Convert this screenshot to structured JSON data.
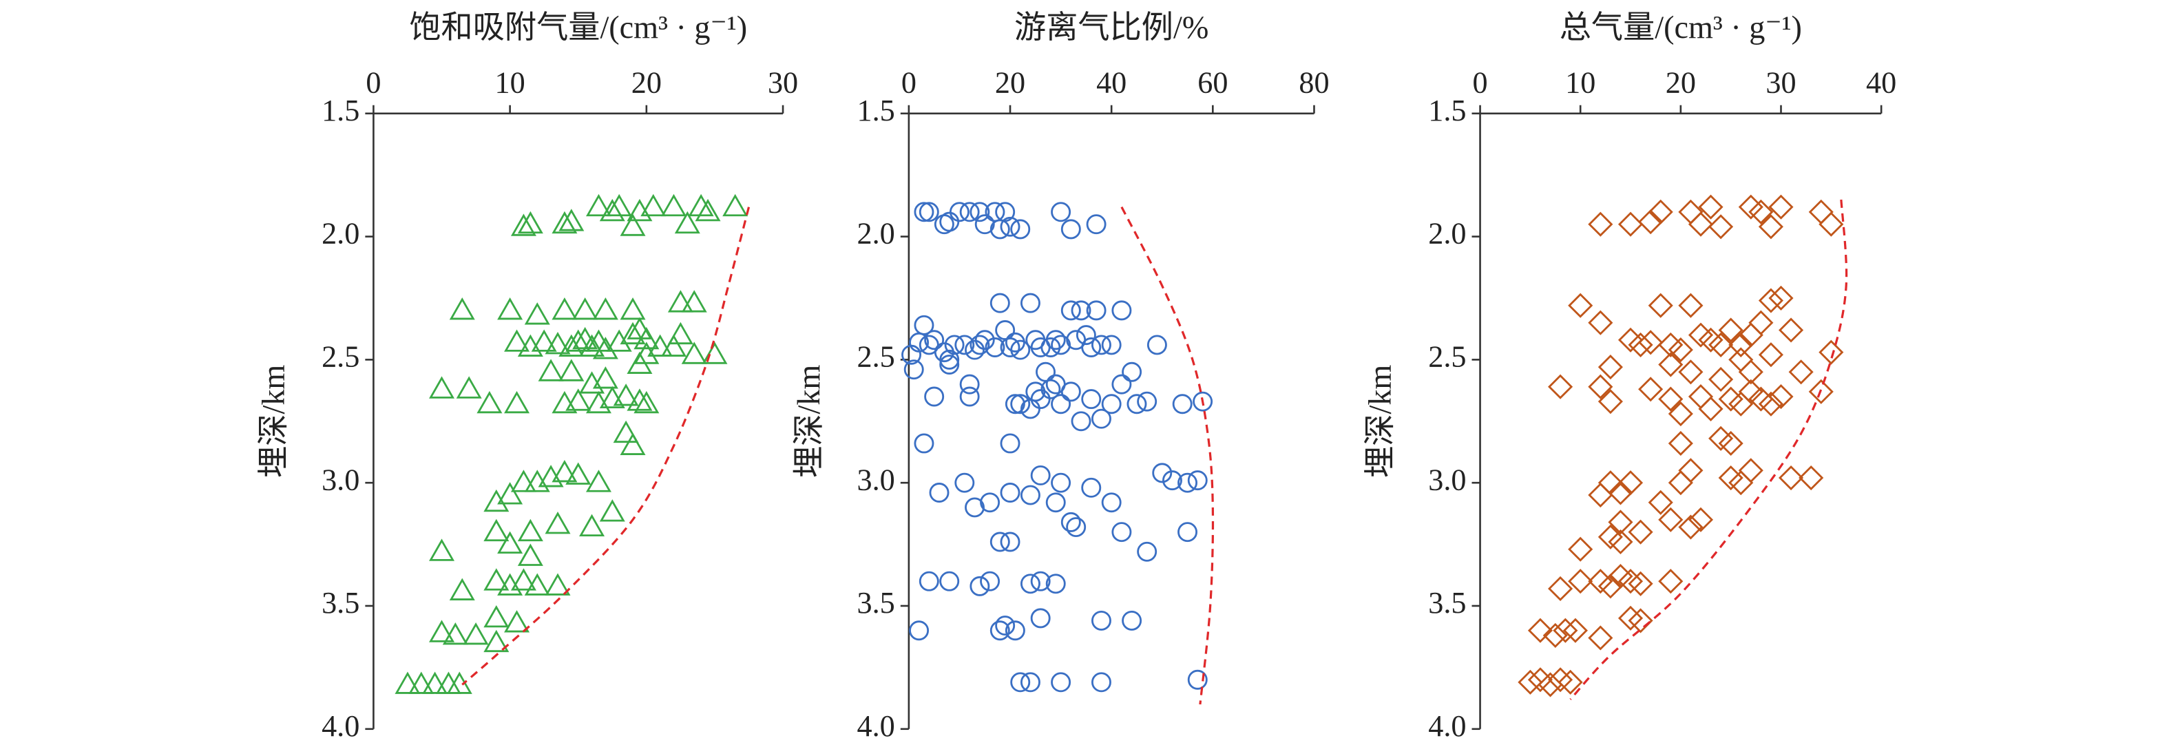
{
  "chart_data": [
    {
      "type": "scatter",
      "title": "饱和吸附气量/(cm³ · g⁻¹)",
      "ylabel": "埋深/km",
      "marker": "triangle",
      "color": "#3aaa45",
      "curve_color": "#e0282a",
      "y_inverted": true,
      "xlim": [
        0,
        30
      ],
      "xticks": [
        0,
        10,
        20,
        30
      ],
      "ylim": [
        1.5,
        4.0
      ],
      "yticks": [
        {
          "value": 1.5,
          "label": "1.5"
        },
        {
          "value": 2.0,
          "label": "2.0"
        },
        {
          "value": 2.5,
          "label": "2.5"
        },
        {
          "value": 3.0,
          "label": "3.0"
        },
        {
          "value": 3.5,
          "label": "3.5"
        },
        {
          "value": 4.0,
          "label": "4.0"
        }
      ],
      "points": {
        "x": [
          11,
          11.5,
          14,
          14.5,
          16.5,
          17.5,
          18,
          19,
          19.5,
          20.5,
          22,
          23,
          24,
          24.5,
          26.5,
          6.5,
          10,
          12,
          14,
          15.5,
          17,
          19,
          22.5,
          23.5,
          10.5,
          11.5,
          12.5,
          13.5,
          14.5,
          15,
          15.5,
          16,
          16.5,
          17,
          18,
          19,
          19.5,
          20,
          21,
          22,
          22.5,
          23.5,
          25,
          13,
          14.5,
          16,
          17,
          19.5,
          20,
          5,
          7,
          8.5,
          10.5,
          14,
          15,
          16.5,
          17.5,
          18.5,
          19.5,
          20,
          18.5,
          19,
          10,
          9,
          11,
          12,
          13,
          14,
          15,
          16.5,
          17.5,
          16,
          13.5,
          11.5,
          9,
          10,
          11.5,
          5,
          9,
          10,
          11,
          12,
          13.5,
          6.5,
          9,
          10.5,
          5,
          6,
          7.5,
          9,
          2.5,
          3.5,
          4.5,
          5.5,
          6.3
        ],
        "y": [
          1.96,
          1.95,
          1.95,
          1.94,
          1.88,
          1.9,
          1.88,
          1.96,
          1.9,
          1.88,
          1.88,
          1.95,
          1.88,
          1.9,
          1.88,
          2.3,
          2.3,
          2.32,
          2.3,
          2.3,
          2.3,
          2.3,
          2.27,
          2.27,
          2.43,
          2.45,
          2.43,
          2.44,
          2.45,
          2.43,
          2.42,
          2.45,
          2.43,
          2.46,
          2.43,
          2.4,
          2.38,
          2.42,
          2.45,
          2.45,
          2.4,
          2.48,
          2.48,
          2.55,
          2.55,
          2.6,
          2.58,
          2.52,
          2.48,
          2.62,
          2.62,
          2.68,
          2.68,
          2.68,
          2.67,
          2.68,
          2.66,
          2.65,
          2.67,
          2.68,
          2.8,
          2.85,
          3.05,
          3.08,
          3.0,
          3.0,
          2.98,
          2.96,
          2.97,
          3.0,
          3.12,
          3.18,
          3.17,
          3.2,
          3.2,
          3.25,
          3.3,
          3.28,
          3.4,
          3.42,
          3.4,
          3.42,
          3.42,
          3.44,
          3.55,
          3.57,
          3.61,
          3.62,
          3.62,
          3.65,
          3.82,
          3.82,
          3.82,
          3.82,
          3.82
        ]
      },
      "curve": {
        "x": [
          27.5,
          26,
          24.5,
          22,
          19,
          14,
          9,
          6.5
        ],
        "y": [
          1.88,
          2.2,
          2.5,
          2.85,
          3.15,
          3.45,
          3.7,
          3.82
        ]
      }
    },
    {
      "type": "scatter",
      "title": "游离气比例/%",
      "ylabel": "埋深/km",
      "marker": "circle",
      "color": "#3a6fc4",
      "curve_color": "#e0282a",
      "y_inverted": true,
      "xlim": [
        0,
        80
      ],
      "xticks": [
        0,
        20,
        40,
        60,
        80
      ],
      "ylim": [
        1.5,
        4.0
      ],
      "yticks": [
        {
          "value": 1.5,
          "label": "1.5"
        },
        {
          "value": 2.0,
          "label": "2.0"
        },
        {
          "value": 2.5,
          "label": "2.5"
        },
        {
          "value": 3.0,
          "label": "3.0"
        },
        {
          "value": 3.5,
          "label": "3.5"
        },
        {
          "value": 4.0,
          "label": "4.0"
        }
      ],
      "points": {
        "x": [
          0.5,
          1,
          2,
          3,
          4,
          7,
          8,
          10,
          12,
          14,
          15,
          17,
          18,
          19,
          20,
          22,
          30,
          32,
          37,
          3,
          4,
          5,
          7,
          8,
          9,
          11,
          12,
          12,
          13,
          14,
          15,
          17,
          18,
          19,
          20,
          21,
          22,
          24,
          25,
          26,
          27,
          28,
          29,
          30,
          32,
          33,
          34,
          35,
          36,
          37,
          38,
          40,
          42,
          3,
          5,
          8,
          20,
          21,
          22,
          24,
          25,
          26,
          28,
          29,
          30,
          32,
          34,
          36,
          38,
          40,
          42,
          44,
          45,
          47,
          49,
          54,
          58,
          6,
          11,
          13,
          16,
          20,
          24,
          26,
          29,
          30,
          32,
          33,
          36,
          40,
          42,
          47,
          50,
          52,
          55,
          57,
          55,
          18,
          20,
          24,
          26,
          29,
          16,
          14,
          4,
          8,
          19,
          21,
          18,
          26,
          38,
          44,
          2,
          22,
          24,
          30,
          38,
          57
        ],
        "y": [
          2.48,
          2.54,
          2.43,
          1.9,
          1.9,
          1.95,
          1.94,
          1.9,
          1.9,
          1.9,
          1.95,
          1.9,
          1.97,
          1.9,
          1.96,
          1.97,
          1.9,
          1.97,
          1.95,
          2.36,
          2.44,
          2.42,
          2.47,
          2.52,
          2.44,
          2.44,
          2.6,
          2.65,
          2.46,
          2.44,
          2.42,
          2.45,
          2.27,
          2.38,
          2.45,
          2.43,
          2.46,
          2.27,
          2.42,
          2.45,
          2.55,
          2.45,
          2.42,
          2.44,
          2.3,
          2.42,
          2.3,
          2.4,
          2.45,
          2.3,
          2.44,
          2.44,
          2.3,
          2.84,
          2.65,
          2.5,
          2.84,
          2.68,
          2.68,
          2.7,
          2.63,
          2.66,
          2.62,
          2.6,
          2.68,
          2.63,
          2.75,
          2.66,
          2.74,
          2.68,
          2.6,
          2.55,
          2.68,
          2.67,
          2.44,
          2.68,
          2.67,
          3.04,
          3.0,
          3.1,
          3.08,
          3.04,
          3.05,
          2.97,
          3.08,
          3.0,
          3.16,
          3.18,
          3.02,
          3.08,
          3.2,
          3.28,
          2.96,
          2.99,
          3.0,
          2.99,
          3.2,
          3.24,
          3.24,
          3.41,
          3.4,
          3.41,
          3.4,
          3.42,
          3.4,
          3.4,
          3.58,
          3.6,
          3.6,
          3.55,
          3.56,
          3.56,
          3.6,
          3.81,
          3.81,
          3.81,
          3.81,
          3.8
        ]
      },
      "curve": {
        "x": [
          42,
          50,
          56,
          59,
          60,
          59.5,
          57.5
        ],
        "y": [
          1.88,
          2.2,
          2.5,
          2.8,
          3.1,
          3.5,
          3.9
        ]
      }
    },
    {
      "type": "scatter",
      "title": "总气量/(cm³ · g⁻¹)",
      "ylabel": "埋深/km",
      "marker": "diamond",
      "color": "#c0561a",
      "curve_color": "#e0282a",
      "y_inverted": true,
      "xlim": [
        0,
        40
      ],
      "xticks": [
        0,
        10,
        20,
        30,
        40
      ],
      "ylim": [
        1.5,
        4.0
      ],
      "yticks": [
        {
          "value": 1.5,
          "label": "1.5"
        },
        {
          "value": 2.0,
          "label": "2.0"
        },
        {
          "value": 2.5,
          "label": "2.5"
        },
        {
          "value": 3.0,
          "label": "3.0"
        },
        {
          "value": 3.5,
          "label": "3.5"
        },
        {
          "value": 4.0,
          "label": "4.0"
        }
      ],
      "points": {
        "x": [
          12,
          15,
          17,
          18,
          21,
          22,
          23,
          24,
          27,
          28,
          29,
          30,
          34,
          35,
          10,
          12,
          15,
          16,
          17,
          18,
          19,
          20,
          21,
          22,
          23,
          24,
          25,
          26,
          27,
          28,
          29,
          30,
          31,
          13,
          19,
          21,
          24,
          26,
          27,
          29,
          8,
          12,
          13,
          17,
          19,
          20,
          22,
          23,
          25,
          26,
          27,
          28,
          29,
          30,
          34,
          35,
          32,
          24,
          25,
          20,
          27,
          25,
          26,
          21,
          20,
          15,
          14,
          12,
          13,
          18,
          19,
          21,
          22,
          31,
          33,
          14,
          16,
          14,
          13,
          10,
          12,
          13,
          14,
          15,
          16,
          19,
          10,
          8,
          12,
          15,
          16,
          6,
          7.5,
          8.5,
          9.5,
          5,
          6,
          7,
          8,
          9
        ],
        "y": [
          1.95,
          1.95,
          1.94,
          1.9,
          1.9,
          1.95,
          1.88,
          1.96,
          1.88,
          1.9,
          1.96,
          1.88,
          1.9,
          1.95,
          2.28,
          2.35,
          2.42,
          2.44,
          2.43,
          2.28,
          2.44,
          2.46,
          2.28,
          2.4,
          2.42,
          2.44,
          2.38,
          2.44,
          2.4,
          2.35,
          2.26,
          2.25,
          2.38,
          2.53,
          2.52,
          2.55,
          2.58,
          2.5,
          2.55,
          2.48,
          2.61,
          2.61,
          2.67,
          2.62,
          2.66,
          2.72,
          2.65,
          2.7,
          2.66,
          2.68,
          2.63,
          2.66,
          2.68,
          2.65,
          2.63,
          2.47,
          2.55,
          2.82,
          2.84,
          2.84,
          2.95,
          2.98,
          3.0,
          2.95,
          3.0,
          3.0,
          3.04,
          3.05,
          3.0,
          3.08,
          3.15,
          3.18,
          3.15,
          2.98,
          2.98,
          3.16,
          3.2,
          3.24,
          3.22,
          3.27,
          3.4,
          3.42,
          3.38,
          3.4,
          3.41,
          3.4,
          3.4,
          3.43,
          3.63,
          3.55,
          3.56,
          3.6,
          3.62,
          3.6,
          3.6,
          3.81,
          3.8,
          3.82,
          3.8,
          3.81
        ]
      },
      "curve": {
        "x": [
          36,
          36.5,
          35,
          32,
          27,
          20,
          13,
          9
        ],
        "y": [
          1.85,
          2.2,
          2.5,
          2.8,
          3.1,
          3.45,
          3.7,
          3.88
        ]
      }
    }
  ]
}
